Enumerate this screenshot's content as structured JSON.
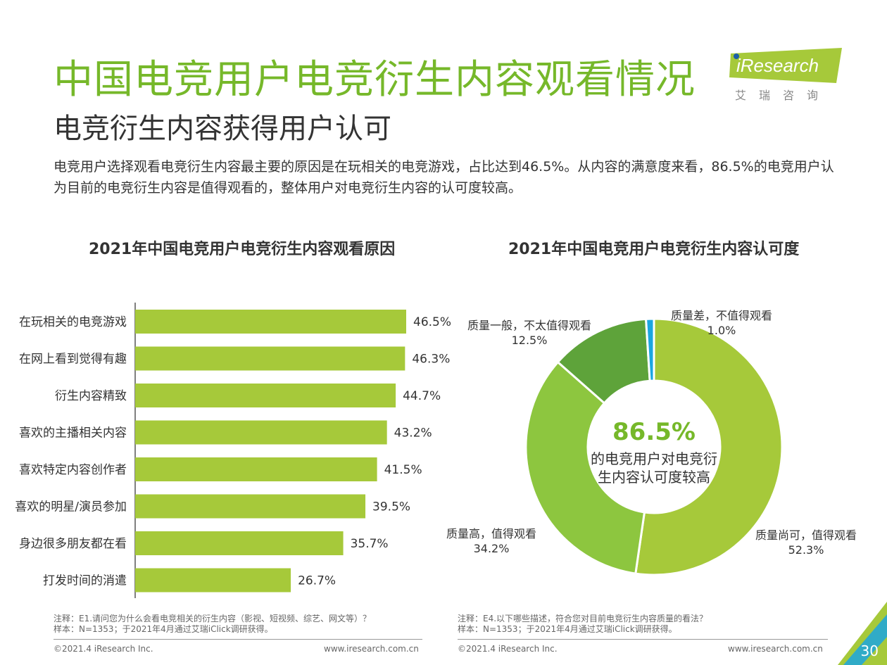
{
  "header": {
    "title": "中国电竞用户电竞衍生内容观看情况",
    "subtitle": "电竞衍生内容获得用户认可",
    "summary": "电竞用户选择观看电竞衍生内容最主要的原因是在玩相关的电竞游戏，占比达到46.5%。从内容的满意度来看，86.5%的电竞用户认为目前的电竞衍生内容是值得观看的，整体用户对电竞衍生内容的认可度较高。"
  },
  "logo": {
    "word": "iResearch",
    "cn": "艾瑞咨询"
  },
  "colors": {
    "title_green": "#76b82a",
    "bar": "#a6c93a",
    "slice_1": "#a6c93a",
    "slice_2": "#8dc63f",
    "slice_3": "#5ea33a",
    "slice_4": "#1ba6e0"
  },
  "chart_data": [
    {
      "type": "bar",
      "orientation": "horizontal",
      "title": "2021年中国电竞用户电竞衍生内容观看原因",
      "categories": [
        "在玩相关的电竞游戏",
        "在网上看到觉得有趣",
        "衍生内容精致",
        "喜欢的主播相关内容",
        "喜欢特定内容创作者",
        "喜欢的明星/演员参加",
        "身边很多朋友都在看",
        "打发时间的消遣"
      ],
      "values": [
        46.5,
        46.3,
        44.7,
        43.2,
        41.5,
        39.5,
        35.7,
        26.7
      ],
      "value_labels": [
        "46.5%",
        "46.3%",
        "44.7%",
        "43.2%",
        "41.5%",
        "39.5%",
        "35.7%",
        "26.7%"
      ],
      "xlim": [
        0,
        60
      ]
    },
    {
      "type": "pie",
      "donut": true,
      "title": "2021年中国电竞用户电竞衍生内容认可度",
      "categories": [
        "质量尚可，值得观看",
        "质量高，值得观看",
        "质量一般，不太值得观看",
        "质量差，不值得观看"
      ],
      "values": [
        52.3,
        34.2,
        12.5,
        1.0
      ],
      "value_labels": [
        "52.3%",
        "34.2%",
        "12.5%",
        "1.0%"
      ],
      "center_value": "86.5%",
      "center_text_line1": "的电竞用户对电竞衍",
      "center_text_line2": "生内容认可度较高"
    }
  ],
  "notes": {
    "left_line1": "注释：E1.请问您为什么会看电竞相关的衍生内容（影视、短视频、综艺、网文等）？",
    "left_line2": "样本：N=1353；于2021年4月通过艾瑞iClick调研获得。",
    "right_line1": "注释：E4.以下哪些描述，符合您对目前电竞衍生内容质量的看法？",
    "right_line2": "样本：N=1353；于2021年4月通过艾瑞iClick调研获得。"
  },
  "footer": {
    "copyright": "©2021.4 iResearch Inc.",
    "website": "www.iresearch.com.cn",
    "page_number": "30"
  }
}
